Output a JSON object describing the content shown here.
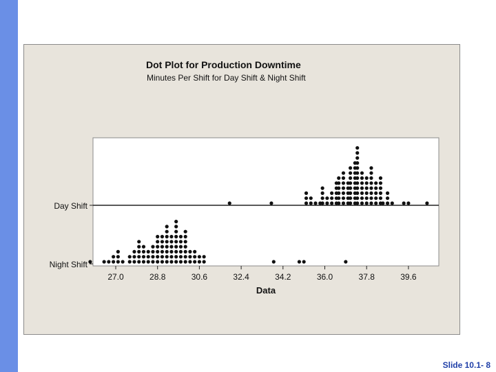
{
  "slide": {
    "number_label": "Slide 10.1- 8"
  },
  "chart_data": {
    "type": "scatter",
    "title": "Dot Plot for Production Downtime",
    "subtitle": "Minutes Per Shift for Day Shift & Night Shift",
    "xlabel": "Data",
    "ylabel": "",
    "xlim": [
      25.6,
      41.6
    ],
    "x_ticks": [
      27.0,
      28.8,
      30.6,
      32.4,
      34.2,
      36.0,
      37.8,
      39.6
    ],
    "x_tick_labels": [
      "27.0",
      "28.8",
      "30.6",
      "32.4",
      "34.2",
      "36.0",
      "37.8",
      "39.6"
    ],
    "categories": [
      "Day Shift",
      "Night Shift"
    ],
    "grid": false,
    "series": [
      {
        "name": "Day Shift",
        "points": [
          [
            31.9,
            1
          ],
          [
            33.7,
            1
          ],
          [
            35.2,
            3
          ],
          [
            35.4,
            2
          ],
          [
            35.6,
            1
          ],
          [
            35.8,
            1
          ],
          [
            35.9,
            4
          ],
          [
            36.1,
            2
          ],
          [
            36.3,
            3
          ],
          [
            36.5,
            5
          ],
          [
            36.6,
            6
          ],
          [
            36.8,
            7
          ],
          [
            37.0,
            5
          ],
          [
            37.1,
            8
          ],
          [
            37.3,
            9
          ],
          [
            37.4,
            12
          ],
          [
            37.6,
            7
          ],
          [
            37.8,
            6
          ],
          [
            38.0,
            8
          ],
          [
            38.2,
            5
          ],
          [
            38.4,
            6
          ],
          [
            38.5,
            1
          ],
          [
            38.7,
            3
          ],
          [
            38.9,
            1
          ],
          [
            39.4,
            1
          ],
          [
            39.6,
            1
          ],
          [
            40.4,
            1
          ]
        ]
      },
      {
        "name": "Night Shift",
        "points": [
          [
            25.9,
            1
          ],
          [
            26.5,
            1
          ],
          [
            26.7,
            1
          ],
          [
            26.9,
            2
          ],
          [
            27.1,
            3
          ],
          [
            27.3,
            1
          ],
          [
            27.6,
            2
          ],
          [
            27.8,
            3
          ],
          [
            28.0,
            5
          ],
          [
            28.2,
            4
          ],
          [
            28.4,
            3
          ],
          [
            28.6,
            4
          ],
          [
            28.8,
            6
          ],
          [
            29.0,
            6
          ],
          [
            29.2,
            8
          ],
          [
            29.4,
            6
          ],
          [
            29.6,
            9
          ],
          [
            29.8,
            6
          ],
          [
            30.0,
            7
          ],
          [
            30.2,
            3
          ],
          [
            30.4,
            3
          ],
          [
            30.6,
            2
          ],
          [
            30.8,
            2
          ],
          [
            33.8,
            1
          ],
          [
            34.9,
            1
          ],
          [
            35.1,
            1
          ],
          [
            36.9,
            1
          ]
        ]
      }
    ]
  }
}
